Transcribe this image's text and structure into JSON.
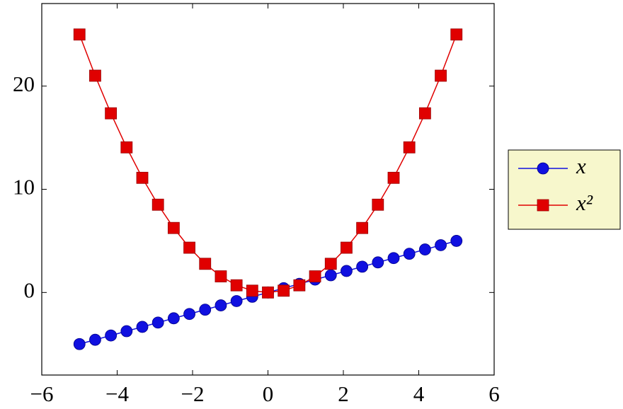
{
  "chart_data": {
    "type": "line",
    "x": [
      -5,
      -4.5833,
      -4.1667,
      -3.75,
      -3.3333,
      -2.9167,
      -2.5,
      -2.0833,
      -1.6667,
      -1.25,
      -0.8333,
      -0.4167,
      0,
      0.4167,
      0.8333,
      1.25,
      1.6667,
      2.0833,
      2.5,
      2.9167,
      3.3333,
      3.75,
      4.1667,
      4.5833,
      5
    ],
    "series": [
      {
        "name": "x",
        "color": "#1010e0",
        "marker": "circle",
        "values": [
          -5,
          -4.5833,
          -4.1667,
          -3.75,
          -3.3333,
          -2.9167,
          -2.5,
          -2.0833,
          -1.6667,
          -1.25,
          -0.8333,
          -0.4167,
          0,
          0.4167,
          0.8333,
          1.25,
          1.6667,
          2.0833,
          2.5,
          2.9167,
          3.3333,
          3.75,
          4.1667,
          4.5833,
          5
        ]
      },
      {
        "name": "x²",
        "color": "#e00000",
        "marker": "square",
        "values": [
          25,
          21.007,
          17.361,
          14.0625,
          11.111,
          8.507,
          6.25,
          4.34,
          2.778,
          1.5625,
          0.694,
          0.174,
          0,
          0.174,
          0.694,
          1.5625,
          2.778,
          4.34,
          6.25,
          8.507,
          11.111,
          14.0625,
          17.361,
          21.007,
          25
        ]
      }
    ],
    "xlim": [
      -6,
      6
    ],
    "xticks": [
      {
        "value": -6,
        "label": "−6"
      },
      {
        "value": -4,
        "label": "−4"
      },
      {
        "value": -2,
        "label": "−2"
      },
      0,
      2,
      4,
      6
    ],
    "ylim": [
      -8,
      28
    ],
    "yticks": [
      0,
      10,
      20
    ],
    "legend": "outer right",
    "legend_color": "#f7f7cc"
  }
}
